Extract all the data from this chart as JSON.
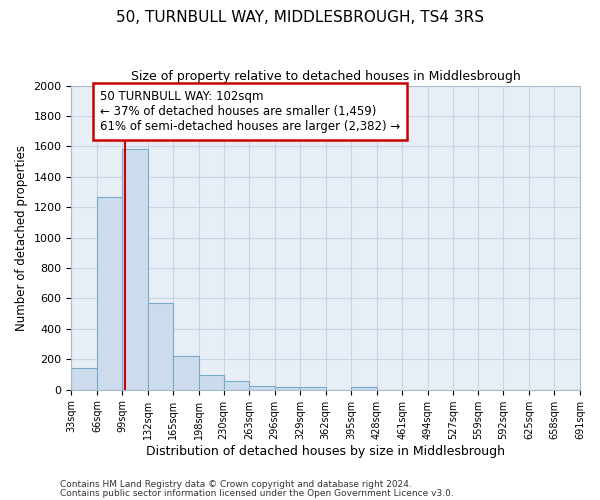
{
  "title": "50, TURNBULL WAY, MIDDLESBROUGH, TS4 3RS",
  "subtitle": "Size of property relative to detached houses in Middlesbrough",
  "xlabel": "Distribution of detached houses by size in Middlesbrough",
  "ylabel": "Number of detached properties",
  "footnote1": "Contains HM Land Registry data © Crown copyright and database right 2024.",
  "footnote2": "Contains public sector information licensed under the Open Government Licence v3.0.",
  "bar_edges": [
    33,
    66,
    99,
    132,
    165,
    198,
    230,
    263,
    296,
    329,
    362,
    395,
    428,
    461,
    494,
    527,
    559,
    592,
    625,
    658,
    691
  ],
  "bar_heights": [
    140,
    1270,
    1580,
    570,
    220,
    95,
    55,
    25,
    20,
    15,
    0,
    20,
    0,
    0,
    0,
    0,
    0,
    0,
    0,
    0
  ],
  "bar_color": "#ccdcec",
  "bar_edge_color": "#7aaaca",
  "property_line_x": 102,
  "property_line_color": "#cc0000",
  "annotation_line1": "50 TURNBULL WAY: 102sqm",
  "annotation_line2": "← 37% of detached houses are smaller (1,459)",
  "annotation_line3": "61% of semi-detached houses are larger (2,382) →",
  "annotation_box_color": "#ffffff",
  "annotation_border_color": "#cc0000",
  "ylim": [
    0,
    2000
  ],
  "yticks": [
    0,
    200,
    400,
    600,
    800,
    1000,
    1200,
    1400,
    1600,
    1800,
    2000
  ],
  "grid_color": "#c8d4e4",
  "background_color": "#e8eef6"
}
